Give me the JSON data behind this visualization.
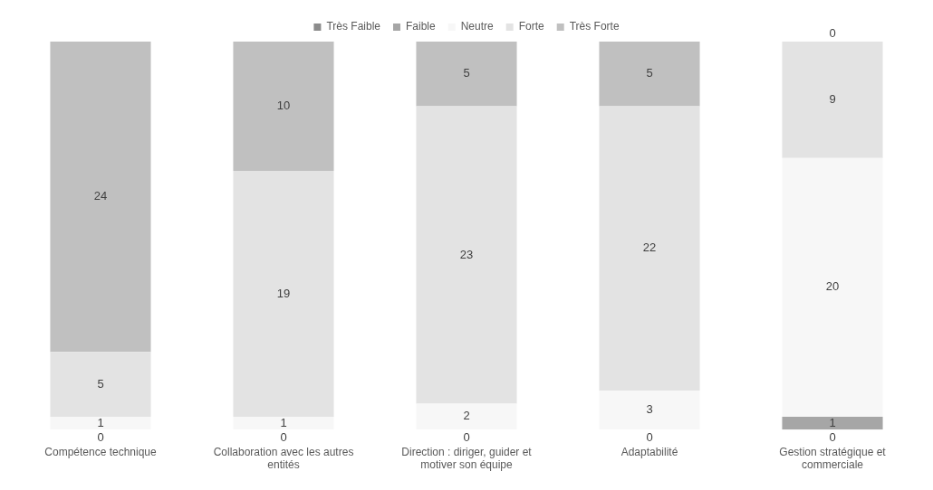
{
  "chart_data": {
    "type": "bar",
    "stacked": true,
    "categories": [
      "Compétence technique",
      "Collaboration avec les autres entités",
      "Direction : diriger, guider et motiver son équipe",
      "Adaptabilité",
      "Gestion stratégique et commerciale"
    ],
    "series": [
      {
        "name": "Très Faible",
        "color": "#8c8c8c",
        "values": [
          0,
          0,
          0,
          0,
          0
        ],
        "value_labels": [
          "0",
          "0",
          "0",
          "0",
          "0"
        ]
      },
      {
        "name": "Faible",
        "color": "#a6a6a6",
        "values": [
          0,
          0,
          0,
          0,
          1
        ],
        "value_labels": [
          null,
          null,
          null,
          null,
          "1"
        ]
      },
      {
        "name": "Neutre",
        "color": "#f7f7f7",
        "values": [
          1,
          1,
          2,
          3,
          20
        ],
        "value_labels": [
          "1",
          "1",
          "2",
          "3",
          "20"
        ]
      },
      {
        "name": "Forte",
        "color": "#e3e3e3",
        "values": [
          5,
          19,
          23,
          22,
          9
        ],
        "value_labels": [
          "5",
          "19",
          "23",
          "22",
          "9"
        ]
      },
      {
        "name": "Très Forte",
        "color": "#c0c0c0",
        "values": [
          24,
          10,
          5,
          5,
          0
        ],
        "value_labels": [
          "24",
          "10",
          "5",
          "5",
          "0"
        ]
      }
    ],
    "ylim": [
      0,
      30
    ],
    "tick_labels": "x",
    "grid": false,
    "legend": "top"
  }
}
